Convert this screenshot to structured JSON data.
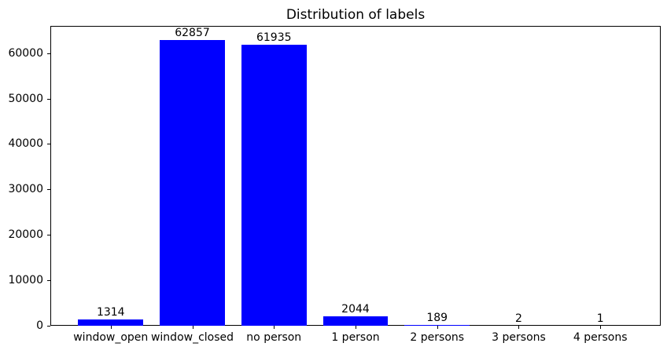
{
  "title": "Distribution of labels",
  "colors": {
    "bar": "#0000ff",
    "axis": "#000000",
    "text": "#000000",
    "background": "#ffffff"
  },
  "chart_data": {
    "type": "bar",
    "title": "Distribution of labels",
    "categories": [
      "window_open",
      "window_closed",
      "no person",
      "1 person",
      "2 persons",
      "3 persons",
      "4 persons"
    ],
    "values": [
      1314,
      62857,
      61935,
      2044,
      189,
      2,
      1
    ],
    "bar_value_labels": [
      "1314",
      "62857",
      "61935",
      "2044",
      "189",
      "2",
      "1"
    ],
    "xlabel": "",
    "ylabel": "",
    "ylim": [
      0,
      66000
    ],
    "yticks": [
      0,
      10000,
      20000,
      30000,
      40000,
      50000,
      60000
    ],
    "ytick_labels": [
      "0",
      "10000",
      "20000",
      "30000",
      "40000",
      "50000",
      "60000"
    ],
    "bar_color": "#0000ff",
    "grid": false,
    "legend": false
  }
}
